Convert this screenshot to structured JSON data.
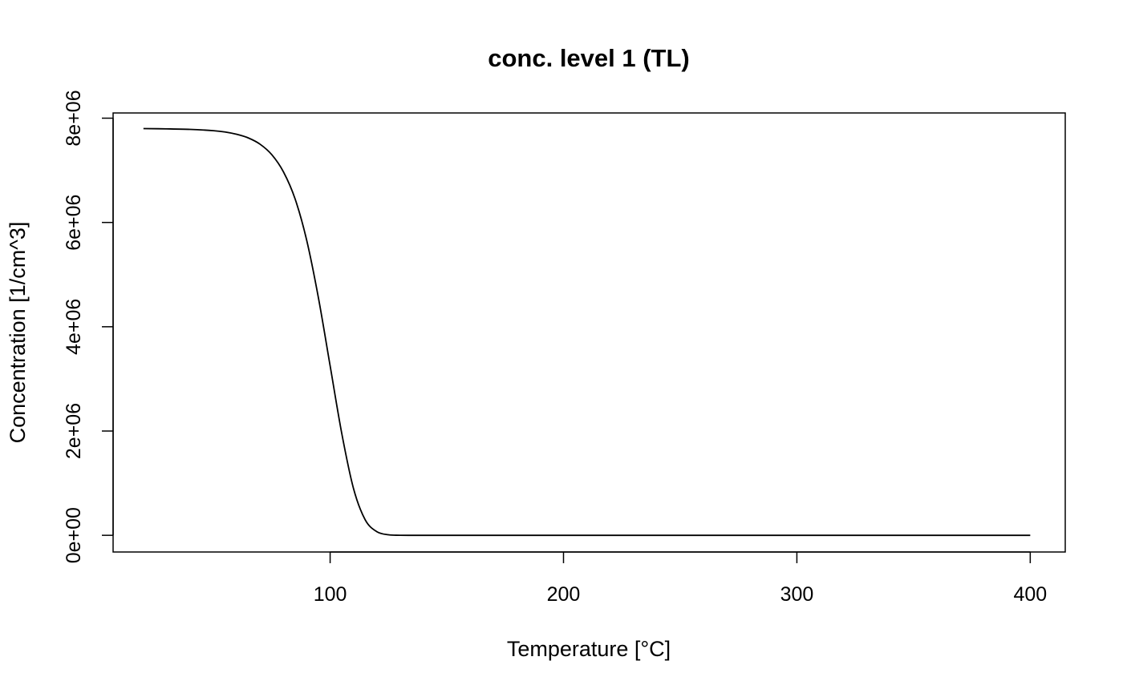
{
  "chart_data": {
    "type": "line",
    "title": "conc. level 1 (TL)",
    "xlabel": "Temperature [°C]",
    "ylabel": "Concentration [1/cm^3]",
    "xlim": [
      7,
      415
    ],
    "ylim": [
      -320000,
      8100000
    ],
    "x_ticks": [
      100,
      200,
      300,
      400
    ],
    "x_tick_labels": [
      "100",
      "200",
      "300",
      "400"
    ],
    "y_ticks": [
      0,
      2000000,
      4000000,
      6000000,
      8000000
    ],
    "y_tick_labels": [
      "0e+00",
      "2e+06",
      "4e+06",
      "6e+06",
      "8e+06"
    ],
    "grid": false,
    "legend": "none",
    "line_color": "#000000",
    "series": [
      {
        "x": [
          20,
          30,
          40,
          50,
          55,
          60,
          65,
          70,
          75,
          80,
          85,
          90,
          95,
          100,
          105,
          110,
          115,
          120,
          125,
          130,
          140,
          160,
          200,
          250,
          300,
          350,
          400
        ],
        "y": [
          7800000,
          7795000,
          7785000,
          7760000,
          7735000,
          7690000,
          7620000,
          7500000,
          7300000,
          6970000,
          6450000,
          5650000,
          4550000,
          3250000,
          1950000,
          900000,
          300000,
          70000,
          10000,
          1000,
          0,
          0,
          0,
          0,
          0,
          0,
          0
        ]
      }
    ]
  }
}
